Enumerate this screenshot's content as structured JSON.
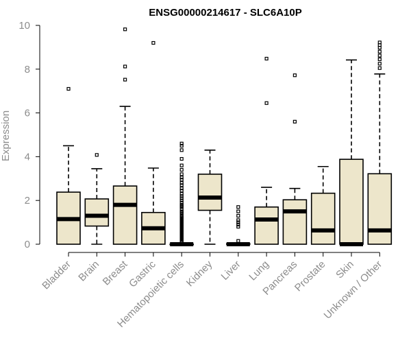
{
  "chart_data": {
    "type": "boxplot",
    "title": "ENSG00000214617 - SLC6A10P",
    "xlabel": "",
    "ylabel": "Expression",
    "ylim": [
      0,
      10
    ],
    "yticks": [
      0,
      2,
      4,
      6,
      8,
      10
    ],
    "box_fill": "#ede6cb",
    "categories": [
      "Bladder",
      "Brain",
      "Breast",
      "Gastric",
      "Hematopoietic cells",
      "Kidney",
      "Liver",
      "Lung",
      "Pancreas",
      "Prostate",
      "Skin",
      "Unknown / Other"
    ],
    "boxes": [
      {
        "category": "Bladder",
        "whisker_low": 0,
        "q1": 0,
        "median": 1.15,
        "q3": 2.38,
        "whisker_high": 4.5,
        "outliers": [
          7.1
        ]
      },
      {
        "category": "Brain",
        "whisker_low": 0,
        "q1": 0.83,
        "median": 1.3,
        "q3": 2.07,
        "whisker_high": 3.45,
        "outliers": [
          4.08
        ]
      },
      {
        "category": "Breast",
        "whisker_low": 0,
        "q1": 0,
        "median": 1.8,
        "q3": 2.66,
        "whisker_high": 6.3,
        "outliers": [
          7.52,
          8.12,
          9.82
        ]
      },
      {
        "category": "Gastric",
        "whisker_low": 0,
        "q1": 0,
        "median": 0.73,
        "q3": 1.45,
        "whisker_high": 3.48,
        "outliers": [
          9.2
        ]
      },
      {
        "category": "Hematopoietic cells",
        "whisker_low": 0,
        "q1": 0,
        "median": 0,
        "q3": 0,
        "whisker_high": 0,
        "outliers": [
          0.1,
          0.15,
          0.2,
          0.25,
          0.3,
          0.35,
          0.4,
          0.45,
          0.5,
          0.55,
          0.6,
          0.65,
          0.7,
          0.75,
          0.8,
          0.85,
          0.9,
          0.95,
          1.0,
          1.05,
          1.1,
          1.15,
          1.2,
          1.25,
          1.3,
          1.4,
          1.45,
          1.5,
          1.6,
          1.7,
          1.75,
          1.8,
          1.9,
          2.0,
          2.1,
          2.2,
          2.3,
          2.45,
          2.55,
          2.7,
          2.8,
          2.95,
          3.05,
          3.2,
          3.4,
          3.6,
          3.9,
          4.3,
          4.5,
          4.6
        ]
      },
      {
        "category": "Kidney",
        "whisker_low": 0,
        "q1": 1.55,
        "median": 2.13,
        "q3": 3.2,
        "whisker_high": 4.3,
        "outliers": []
      },
      {
        "category": "Liver",
        "whisker_low": 0,
        "q1": 0,
        "median": 0,
        "q3": 0.02,
        "whisker_high": 0.05,
        "outliers": [
          0.15,
          0.8,
          0.9,
          1.0,
          1.1,
          1.3,
          1.5,
          1.7
        ]
      },
      {
        "category": "Lung",
        "whisker_low": 0,
        "q1": 0,
        "median": 1.13,
        "q3": 1.7,
        "whisker_high": 2.6,
        "outliers": [
          6.45,
          8.48
        ]
      },
      {
        "category": "Pancreas",
        "whisker_low": 0,
        "q1": 0,
        "median": 1.5,
        "q3": 2.03,
        "whisker_high": 2.55,
        "outliers": [
          5.6,
          7.72
        ]
      },
      {
        "category": "Prostate",
        "whisker_low": 0,
        "q1": 0,
        "median": 0.63,
        "q3": 2.33,
        "whisker_high": 3.55,
        "outliers": []
      },
      {
        "category": "Skin",
        "whisker_low": 0,
        "q1": 0,
        "median": 0,
        "q3": 3.88,
        "whisker_high": 8.42,
        "outliers": []
      },
      {
        "category": "Unknown / Other",
        "whisker_low": 0,
        "q1": 0,
        "median": 0.63,
        "q3": 3.22,
        "whisker_high": 7.78,
        "outliers": [
          8.05,
          8.25,
          8.45,
          8.62,
          8.8,
          8.98,
          9.1,
          9.22
        ]
      }
    ]
  }
}
